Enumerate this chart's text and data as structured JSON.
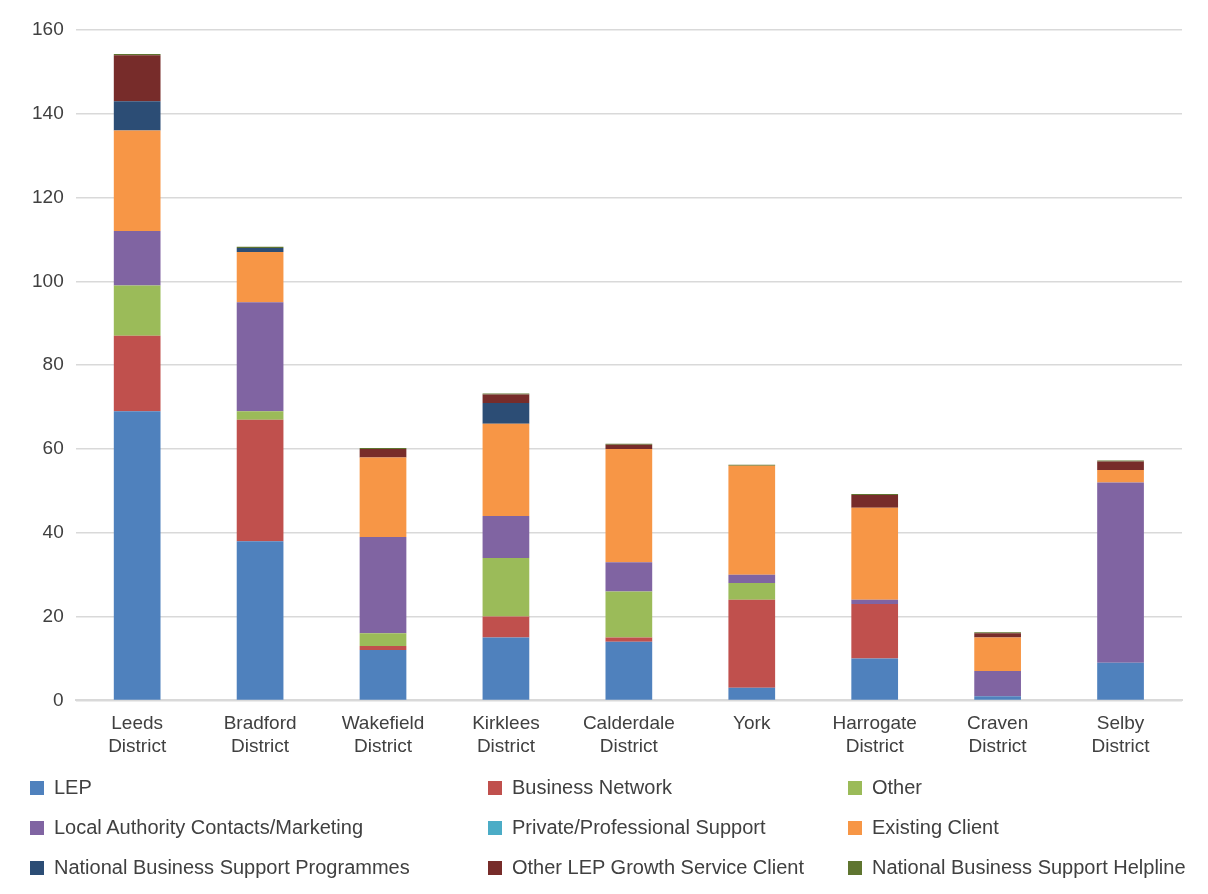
{
  "chart_data": {
    "type": "bar",
    "stacked": true,
    "categories": [
      "Leeds District",
      "Bradford District",
      "Wakefield District",
      "Kirklees District",
      "Calderdale District",
      "York",
      "Harrogate District",
      "Craven District",
      "Selby District"
    ],
    "series": [
      {
        "name": "LEP",
        "color": "#4f81bd",
        "values": [
          69,
          38,
          12,
          15,
          14,
          3,
          10,
          1,
          9
        ]
      },
      {
        "name": "Business Network",
        "color": "#c0504d",
        "values": [
          18,
          29,
          1,
          5,
          1,
          21,
          13,
          0,
          0
        ]
      },
      {
        "name": "Other",
        "color": "#9bbb59",
        "values": [
          12,
          2,
          3,
          14,
          11,
          4,
          0,
          0,
          0
        ]
      },
      {
        "name": "Local Authority Contacts/Marketing",
        "color": "#8064a2",
        "values": [
          13,
          26,
          23,
          10,
          7,
          2,
          1,
          6,
          43
        ]
      },
      {
        "name": "Private/Professional Support",
        "color": "#4bacc6",
        "values": [
          0,
          0,
          0,
          0,
          0,
          0,
          0,
          0,
          0
        ]
      },
      {
        "name": "Existing Client",
        "color": "#f79646",
        "values": [
          24,
          12,
          19,
          22,
          27,
          26,
          22,
          8,
          3
        ]
      },
      {
        "name": "National Business Support Programmes",
        "color": "#2c4d75",
        "values": [
          7,
          1,
          0,
          5,
          0,
          0,
          0,
          0,
          0
        ]
      },
      {
        "name": "Other LEP Growth Service Client",
        "color": "#772c2a",
        "values": [
          11,
          0,
          2,
          2,
          1,
          0,
          3,
          1,
          2
        ]
      },
      {
        "name": "National Business Support Helpline",
        "color": "#5f7530",
        "values": [
          0.25,
          0.25,
          0.25,
          0.25,
          0.25,
          0.25,
          0.25,
          0.25,
          0.25
        ]
      }
    ],
    "ylim": [
      0,
      160
    ],
    "yticks": [
      0,
      20,
      40,
      60,
      80,
      100,
      120,
      140,
      160
    ],
    "grid": "y",
    "legend": "bottom"
  }
}
